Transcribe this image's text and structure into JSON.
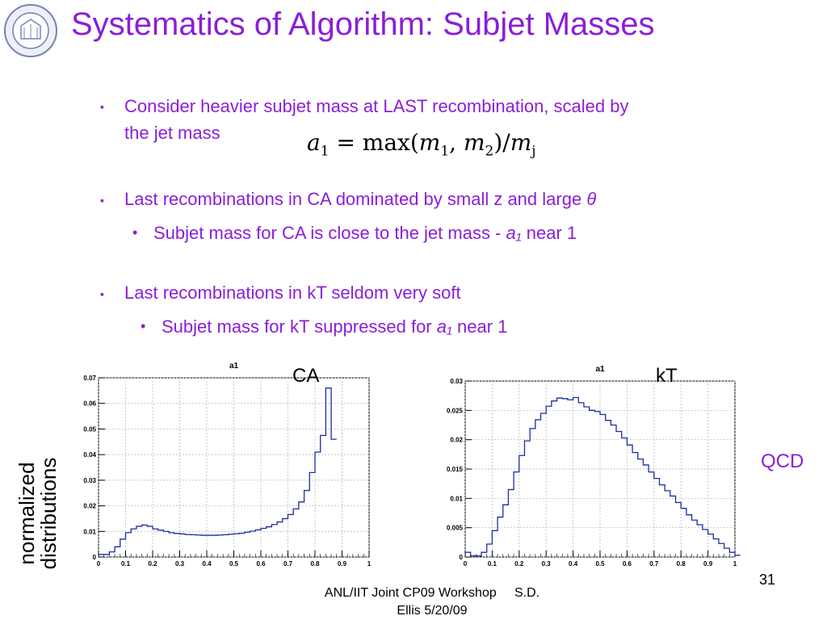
{
  "title": "Systematics of Algorithm: Subjet Masses",
  "bullets": {
    "b1": "Consider heavier subjet mass at LAST recombination, scaled by",
    "b1_cont": "the jet mass",
    "b2": "Last recombinations in CA dominated by small z and large ",
    "b2_symbol": "θ",
    "b2_sub": "Subjet mass for CA is close to the jet mass - ",
    "b2_sub_var": "a₁",
    "b2_sub_end": " near 1",
    "b3": "Last recombinations in kT seldom very soft",
    "b3_sub": "Subjet mass for kT suppressed for ",
    "b3_sub_var": "a₁",
    "b3_sub_end": " near 1"
  },
  "formula": {
    "lhs": "a",
    "lhs_sub": "1",
    "op": "= max(",
    "m1": "m",
    "m1_sub": "1",
    "comma": ", ",
    "m2": "m",
    "m2_sub": "2",
    "close": ")/",
    "mj": "m",
    "mj_sub": "j"
  },
  "labels": {
    "ca": "CA",
    "kt": "kT",
    "qcd": "QCD",
    "ylabel_line1": "normalized",
    "ylabel_line2": "distributions"
  },
  "footer": {
    "line1": "ANL/IIT Joint CP09 Workshop     S.D.",
    "line2": "Ellis 5/20/09",
    "page": "31"
  },
  "colors": {
    "accent": "#8b1ed8",
    "histogram": "#1a2ea0",
    "grid": "#b0b0b0"
  },
  "chart_data": [
    {
      "type": "bar",
      "title": "a1",
      "xlim": [
        0,
        1
      ],
      "ylim": [
        0,
        0.07
      ],
      "grid": true,
      "xticks": [
        "0",
        "0.1",
        "0.2",
        "0.3",
        "0.4",
        "0.5",
        "0.6",
        "0.7",
        "0.8",
        "0.9",
        "1"
      ],
      "yticks": [
        "0",
        "0.01",
        "0.02",
        "0.03",
        "0.04",
        "0.05",
        "0.06",
        "0.07"
      ],
      "bin_width": 0.02,
      "values": [
        0.001,
        0.001,
        0.002,
        0.004,
        0.007,
        0.0095,
        0.011,
        0.012,
        0.0125,
        0.012,
        0.011,
        0.0105,
        0.01,
        0.0095,
        0.0092,
        0.009,
        0.0088,
        0.0087,
        0.0086,
        0.0085,
        0.0085,
        0.0085,
        0.0086,
        0.0087,
        0.0089,
        0.0091,
        0.0093,
        0.0097,
        0.0101,
        0.0106,
        0.0112,
        0.0118,
        0.0127,
        0.0137,
        0.015,
        0.0166,
        0.0188,
        0.0215,
        0.026,
        0.033,
        0.041,
        0.0475,
        0.066,
        0.046
      ]
    },
    {
      "type": "bar",
      "title": "a1",
      "xlim": [
        0,
        1
      ],
      "ylim": [
        0,
        0.03
      ],
      "grid": true,
      "xticks": [
        "0",
        "0.1",
        "0.2",
        "0.3",
        "0.4",
        "0.5",
        "0.6",
        "0.7",
        "0.8",
        "0.9",
        "1"
      ],
      "yticks": [
        "0",
        "0.005",
        "0.01",
        "0.015",
        "0.02",
        "0.025",
        "0.03"
      ],
      "bin_width": 0.02,
      "values": [
        0.0008,
        0.0002,
        0.0002,
        0.0008,
        0.0022,
        0.0045,
        0.0068,
        0.0089,
        0.0115,
        0.0145,
        0.0173,
        0.0198,
        0.0219,
        0.0234,
        0.0245,
        0.0257,
        0.0266,
        0.0271,
        0.027,
        0.0268,
        0.0272,
        0.0263,
        0.0256,
        0.025,
        0.0248,
        0.0243,
        0.0233,
        0.0225,
        0.0214,
        0.0203,
        0.0191,
        0.0178,
        0.0167,
        0.0157,
        0.0145,
        0.0134,
        0.0123,
        0.0113,
        0.0104,
        0.0093,
        0.0083,
        0.0072,
        0.0063,
        0.0055,
        0.0047,
        0.0039,
        0.0031,
        0.0023,
        0.0015,
        0.0008,
        0.0003
      ]
    }
  ]
}
